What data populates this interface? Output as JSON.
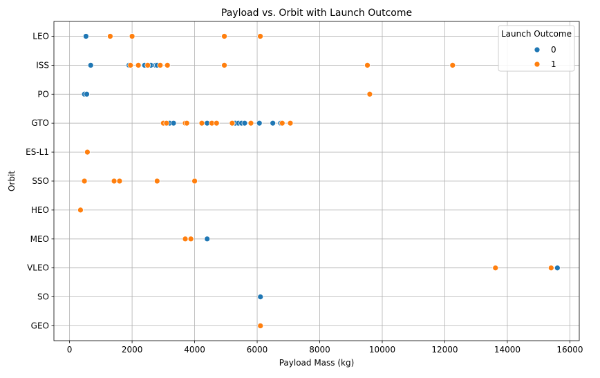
{
  "chart_data": {
    "type": "scatter",
    "title": "Payload vs. Orbit with Launch Outcome",
    "xlabel": "Payload Mass (kg)",
    "ylabel": "Orbit",
    "xlim": [
      -500,
      16300
    ],
    "xticks": [
      0,
      2000,
      4000,
      6000,
      8000,
      10000,
      12000,
      14000,
      16000
    ],
    "categories": [
      "LEO",
      "ISS",
      "PO",
      "GTO",
      "ES-L1",
      "SSO",
      "HEO",
      "MEO",
      "VLEO",
      "SO",
      "GEO"
    ],
    "grid": true,
    "legend": {
      "title": "Launch Outcome",
      "placement": "top-right"
    },
    "series": [
      {
        "name": "0",
        "color": "#1f77b4",
        "points": [
          {
            "x": 525,
            "y": "LEO"
          },
          {
            "x": 677,
            "y": "ISS"
          },
          {
            "x": 1900,
            "y": "ISS"
          },
          {
            "x": 2400,
            "y": "ISS"
          },
          {
            "x": 2600,
            "y": "ISS"
          },
          {
            "x": 2750,
            "y": "ISS"
          },
          {
            "x": 2800,
            "y": "ISS"
          },
          {
            "x": 475,
            "y": "PO"
          },
          {
            "x": 550,
            "y": "PO"
          },
          {
            "x": 3200,
            "y": "GTO"
          },
          {
            "x": 3325,
            "y": "GTO"
          },
          {
            "x": 4400,
            "y": "GTO"
          },
          {
            "x": 5300,
            "y": "GTO"
          },
          {
            "x": 5400,
            "y": "GTO"
          },
          {
            "x": 5500,
            "y": "GTO"
          },
          {
            "x": 5600,
            "y": "GTO"
          },
          {
            "x": 6070,
            "y": "GTO"
          },
          {
            "x": 6500,
            "y": "GTO"
          },
          {
            "x": 6750,
            "y": "GTO"
          },
          {
            "x": 4400,
            "y": "MEO"
          },
          {
            "x": 15600,
            "y": "VLEO"
          },
          {
            "x": 6104,
            "y": "SO"
          }
        ]
      },
      {
        "name": "1",
        "color": "#ff7f0e",
        "points": [
          {
            "x": 1300,
            "y": "LEO"
          },
          {
            "x": 2000,
            "y": "LEO"
          },
          {
            "x": 4950,
            "y": "LEO"
          },
          {
            "x": 6100,
            "y": "LEO"
          },
          {
            "x": 1950,
            "y": "ISS"
          },
          {
            "x": 2200,
            "y": "ISS"
          },
          {
            "x": 2500,
            "y": "ISS"
          },
          {
            "x": 2900,
            "y": "ISS"
          },
          {
            "x": 3130,
            "y": "ISS"
          },
          {
            "x": 4950,
            "y": "ISS"
          },
          {
            "x": 9525,
            "y": "ISS"
          },
          {
            "x": 12250,
            "y": "ISS"
          },
          {
            "x": 9600,
            "y": "PO"
          },
          {
            "x": 3000,
            "y": "GTO"
          },
          {
            "x": 3100,
            "y": "GTO"
          },
          {
            "x": 3700,
            "y": "GTO"
          },
          {
            "x": 3750,
            "y": "GTO"
          },
          {
            "x": 4230,
            "y": "GTO"
          },
          {
            "x": 4550,
            "y": "GTO"
          },
          {
            "x": 4700,
            "y": "GTO"
          },
          {
            "x": 5200,
            "y": "GTO"
          },
          {
            "x": 5800,
            "y": "GTO"
          },
          {
            "x": 6800,
            "y": "GTO"
          },
          {
            "x": 7060,
            "y": "GTO"
          },
          {
            "x": 570,
            "y": "ES-L1"
          },
          {
            "x": 475,
            "y": "SSO"
          },
          {
            "x": 1425,
            "y": "SSO"
          },
          {
            "x": 1600,
            "y": "SSO"
          },
          {
            "x": 2800,
            "y": "SSO"
          },
          {
            "x": 4000,
            "y": "SSO"
          },
          {
            "x": 350,
            "y": "HEO"
          },
          {
            "x": 3700,
            "y": "MEO"
          },
          {
            "x": 3880,
            "y": "MEO"
          },
          {
            "x": 13620,
            "y": "VLEO"
          },
          {
            "x": 15400,
            "y": "VLEO"
          },
          {
            "x": 6104,
            "y": "GEO"
          }
        ]
      }
    ]
  }
}
